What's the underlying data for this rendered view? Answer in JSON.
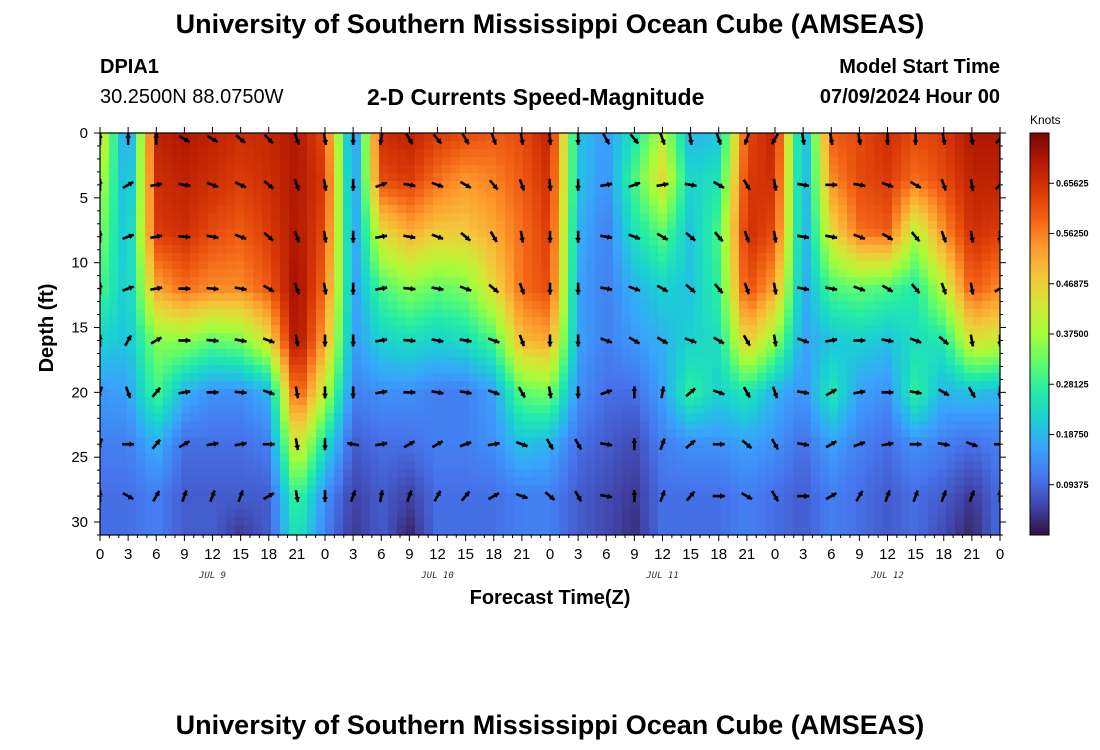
{
  "header": {
    "title": "University of Southern Mississippi Ocean Cube (AMSEAS)",
    "station": "DPIA1",
    "coords": "30.2500N  88.0750W",
    "plot_title": "2-D Currents Speed-Magnitude",
    "model_label": "Model Start Time",
    "model_time": "07/09/2024 Hour 00",
    "footer_title": "University of Southern Mississippi Ocean Cube (AMSEAS)"
  },
  "chart_data": {
    "type": "heatmap",
    "title": "2-D Currents Speed-Magnitude",
    "xlabel": "Forecast Time(Z)",
    "ylabel": "Depth (ft)",
    "ylim": [
      0,
      31
    ],
    "yticks": [
      "0",
      "5",
      "10",
      "15",
      "20",
      "25",
      "30"
    ],
    "xticks": [
      "0",
      "3",
      "6",
      "9",
      "12",
      "15",
      "18",
      "21",
      "0",
      "3",
      "6",
      "9",
      "12",
      "15",
      "18",
      "21",
      "0",
      "3",
      "6",
      "9",
      "12",
      "15",
      "18",
      "21",
      "0",
      "3",
      "6",
      "9",
      "12",
      "15",
      "18",
      "21",
      "0"
    ],
    "day_labels": [
      "JUL 9",
      "JUL 10",
      "JUL 11",
      "JUL 12"
    ],
    "colorbar": {
      "unit": "Knots",
      "min": 0,
      "max": 0.75,
      "tick_labels": [
        "0.65625",
        "0.56250",
        "0.46875",
        "0.37500",
        "0.28125",
        "0.18750",
        "0.09375"
      ],
      "tick_values": [
        0.65625,
        0.5625,
        0.46875,
        0.375,
        0.28125,
        0.1875,
        0.09375
      ]
    },
    "hours": [
      0,
      3,
      6,
      9,
      12,
      15,
      18,
      21,
      24,
      27,
      30,
      33,
      36,
      39,
      42,
      45,
      48,
      51,
      54,
      57,
      60,
      63,
      66,
      69,
      72,
      75,
      78,
      81,
      84,
      87,
      90,
      93,
      96
    ],
    "depths_ft": [
      0,
      3.5,
      7.5,
      12,
      16,
      20,
      24,
      28,
      31
    ],
    "speed_knots": [
      [
        0.45,
        0.12,
        0.68,
        0.7,
        0.68,
        0.66,
        0.67,
        0.7,
        0.62,
        0.1,
        0.66,
        0.68,
        0.64,
        0.62,
        0.6,
        0.62,
        0.68,
        0.2,
        0.15,
        0.25,
        0.4,
        0.18,
        0.2,
        0.62,
        0.68,
        0.15,
        0.6,
        0.62,
        0.66,
        0.62,
        0.64,
        0.7,
        0.7
      ],
      [
        0.4,
        0.15,
        0.66,
        0.68,
        0.66,
        0.64,
        0.66,
        0.7,
        0.64,
        0.12,
        0.62,
        0.64,
        0.58,
        0.54,
        0.56,
        0.6,
        0.66,
        0.2,
        0.14,
        0.3,
        0.45,
        0.22,
        0.25,
        0.64,
        0.66,
        0.15,
        0.55,
        0.62,
        0.64,
        0.58,
        0.62,
        0.68,
        0.68
      ],
      [
        0.35,
        0.18,
        0.64,
        0.66,
        0.62,
        0.6,
        0.64,
        0.7,
        0.62,
        0.14,
        0.45,
        0.52,
        0.48,
        0.48,
        0.52,
        0.58,
        0.64,
        0.18,
        0.12,
        0.25,
        0.32,
        0.2,
        0.3,
        0.66,
        0.62,
        0.16,
        0.45,
        0.58,
        0.6,
        0.4,
        0.55,
        0.66,
        0.64
      ],
      [
        0.3,
        0.2,
        0.52,
        0.58,
        0.55,
        0.55,
        0.6,
        0.72,
        0.58,
        0.15,
        0.3,
        0.35,
        0.32,
        0.34,
        0.45,
        0.58,
        0.62,
        0.16,
        0.12,
        0.18,
        0.22,
        0.2,
        0.28,
        0.62,
        0.52,
        0.16,
        0.3,
        0.32,
        0.3,
        0.26,
        0.4,
        0.6,
        0.55
      ],
      [
        0.22,
        0.2,
        0.35,
        0.36,
        0.32,
        0.34,
        0.45,
        0.72,
        0.52,
        0.15,
        0.22,
        0.24,
        0.22,
        0.24,
        0.3,
        0.5,
        0.52,
        0.16,
        0.12,
        0.15,
        0.18,
        0.22,
        0.24,
        0.48,
        0.36,
        0.16,
        0.2,
        0.22,
        0.2,
        0.24,
        0.26,
        0.44,
        0.42
      ],
      [
        0.15,
        0.16,
        0.3,
        0.18,
        0.14,
        0.14,
        0.18,
        0.62,
        0.4,
        0.12,
        0.14,
        0.14,
        0.12,
        0.12,
        0.16,
        0.32,
        0.34,
        0.14,
        0.1,
        0.1,
        0.16,
        0.28,
        0.22,
        0.26,
        0.18,
        0.14,
        0.26,
        0.16,
        0.14,
        0.28,
        0.18,
        0.2,
        0.18
      ],
      [
        0.12,
        0.12,
        0.18,
        0.1,
        0.1,
        0.1,
        0.12,
        0.45,
        0.24,
        0.08,
        0.1,
        0.1,
        0.12,
        0.12,
        0.14,
        0.2,
        0.18,
        0.1,
        0.08,
        0.06,
        0.12,
        0.14,
        0.14,
        0.16,
        0.14,
        0.1,
        0.16,
        0.12,
        0.1,
        0.14,
        0.12,
        0.1,
        0.12
      ],
      [
        0.1,
        0.1,
        0.12,
        0.08,
        0.08,
        0.08,
        0.08,
        0.3,
        0.14,
        0.05,
        0.08,
        0.05,
        0.1,
        0.1,
        0.1,
        0.12,
        0.12,
        0.08,
        0.06,
        0.04,
        0.1,
        0.1,
        0.1,
        0.12,
        0.1,
        0.08,
        0.12,
        0.1,
        0.08,
        0.1,
        0.08,
        0.04,
        0.1
      ],
      [
        0.1,
        0.1,
        0.12,
        0.08,
        0.08,
        0.04,
        0.08,
        0.26,
        0.12,
        0.04,
        0.08,
        0.02,
        0.1,
        0.1,
        0.1,
        0.12,
        0.12,
        0.08,
        0.06,
        0.03,
        0.1,
        0.1,
        0.1,
        0.12,
        0.1,
        0.08,
        0.12,
        0.1,
        0.08,
        0.1,
        0.06,
        0.02,
        0.1
      ]
    ],
    "vector_hours": [
      0,
      3,
      6,
      9,
      12,
      15,
      18,
      21,
      24,
      27,
      30,
      33,
      36,
      39,
      42,
      45,
      48,
      51,
      54,
      57,
      60,
      63,
      66,
      69,
      72,
      75,
      78,
      81,
      84,
      87,
      90,
      93,
      96
    ],
    "vector_depths_ft": [
      0,
      4,
      8,
      12,
      16,
      20,
      24,
      28
    ],
    "vector_dir_deg": [
      [
        0,
        0,
        0,
        120,
        120,
        130,
        135,
        160,
        170,
        180,
        190,
        150,
        140,
        150,
        160,
        170,
        175,
        180,
        150,
        140,
        160,
        170,
        160,
        200,
        210,
        170,
        170,
        170,
        180,
        180,
        170,
        170,
        45
      ],
      [
        0,
        60,
        80,
        100,
        110,
        115,
        130,
        160,
        170,
        180,
        70,
        100,
        110,
        120,
        140,
        160,
        175,
        180,
        80,
        70,
        80,
        100,
        120,
        150,
        170,
        100,
        90,
        100,
        110,
        120,
        160,
        170,
        45
      ],
      [
        0,
        70,
        80,
        95,
        100,
        110,
        130,
        160,
        170,
        180,
        80,
        100,
        110,
        130,
        150,
        170,
        180,
        180,
        100,
        110,
        120,
        130,
        140,
        160,
        170,
        100,
        100,
        110,
        120,
        140,
        160,
        170,
        180
      ],
      [
        0,
        70,
        80,
        90,
        95,
        100,
        120,
        160,
        170,
        180,
        80,
        95,
        100,
        110,
        130,
        160,
        180,
        180,
        100,
        110,
        120,
        130,
        140,
        160,
        170,
        100,
        100,
        110,
        120,
        140,
        160,
        170,
        60
      ],
      [
        0,
        30,
        60,
        90,
        95,
        100,
        110,
        170,
        180,
        180,
        80,
        95,
        100,
        100,
        110,
        160,
        180,
        180,
        110,
        120,
        120,
        110,
        120,
        150,
        170,
        110,
        80,
        90,
        100,
        110,
        130,
        170,
        180
      ],
      [
        200,
        160,
        40,
        80,
        90,
        95,
        110,
        170,
        180,
        180,
        80,
        90,
        100,
        100,
        110,
        150,
        170,
        180,
        70,
        0,
        10,
        50,
        110,
        150,
        160,
        100,
        60,
        80,
        90,
        100,
        120,
        150,
        180
      ],
      [
        200,
        90,
        40,
        60,
        80,
        80,
        90,
        170,
        180,
        280,
        80,
        60,
        60,
        70,
        80,
        110,
        150,
        150,
        100,
        0,
        20,
        50,
        90,
        130,
        150,
        100,
        60,
        70,
        80,
        90,
        100,
        110,
        90
      ],
      [
        0,
        120,
        30,
        20,
        20,
        20,
        60,
        170,
        180,
        20,
        10,
        20,
        30,
        40,
        60,
        110,
        130,
        150,
        100,
        0,
        20,
        40,
        90,
        120,
        150,
        90,
        60,
        30,
        20,
        20,
        20,
        20,
        0
      ]
    ]
  }
}
